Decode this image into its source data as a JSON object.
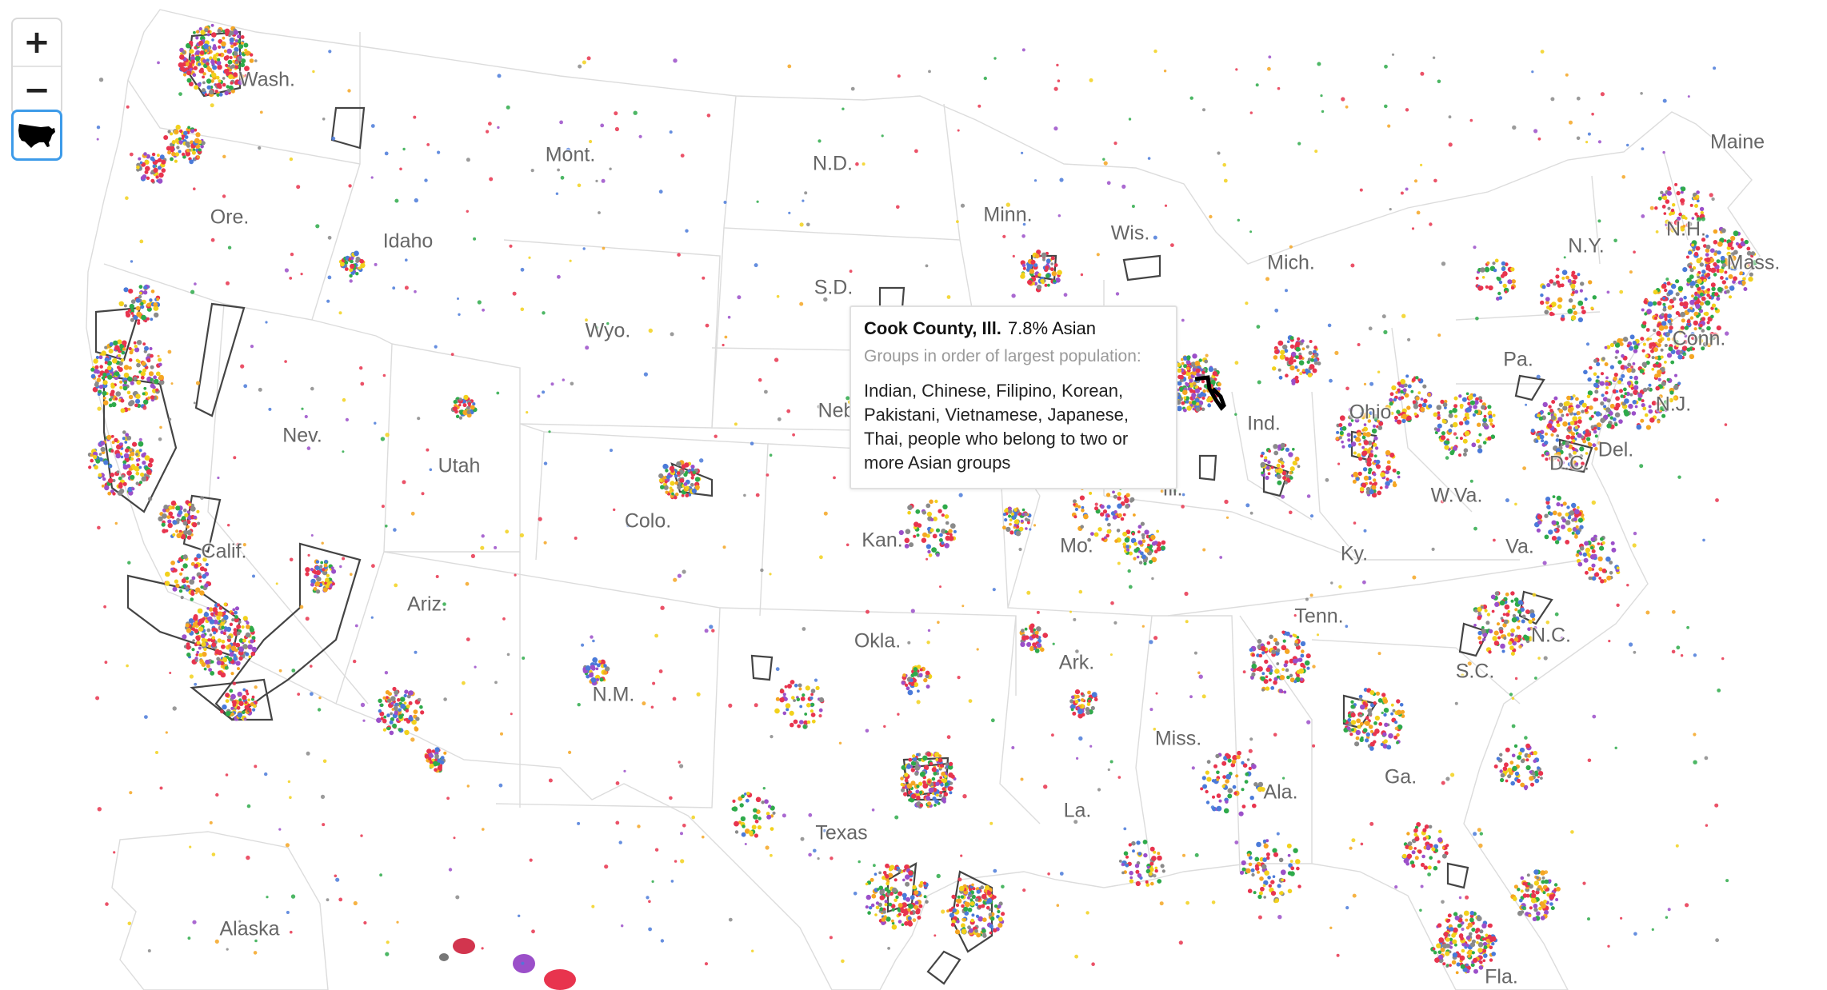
{
  "controls": {
    "zoom_in_label": "+",
    "zoom_out_label": "−",
    "reset_icon": "usa-map-icon"
  },
  "tooltip": {
    "county": "Cook County, Ill.",
    "stat": "7.8% Asian",
    "subtitle": "Groups in order of largest population:",
    "groups": "Indian, Chinese, Filipino, Korean, Pakistani, Vietnamese, Japanese, Thai, people who belong to two or more Asian groups"
  },
  "states": {
    "wash": "Wash.",
    "ore": "Ore.",
    "calif": "Calif.",
    "nev": "Nev.",
    "idaho": "Idaho",
    "mont": "Mont.",
    "wyo": "Wyo.",
    "utah": "Utah",
    "ariz": "Ariz.",
    "colo": "Colo.",
    "nm": "N.M.",
    "nd": "N.D.",
    "sd": "S.D.",
    "neb": "Neb.",
    "kan": "Kan.",
    "okla": "Okla.",
    "texas": "Texas",
    "minn": "Minn.",
    "wis": "Wis.",
    "mich": "Mich.",
    "ill": "Ill.",
    "ind": "Ind.",
    "ohio": "Ohio",
    "mo": "Mo.",
    "ark": "Ark.",
    "la": "La.",
    "miss": "Miss.",
    "ala": "Ala.",
    "ga": "Ga.",
    "fla": "Fla.",
    "tenn": "Tenn.",
    "ky": "Ky.",
    "wva": "W.Va.",
    "va": "Va.",
    "nc": "N.C.",
    "sc": "S.C.",
    "pa": "Pa.",
    "ny": "N.Y.",
    "nj": "N.J.",
    "del": "Del.",
    "dc": "D.C.",
    "conn": "Conn.",
    "mass": "Mass.",
    "nh": "N.H.",
    "maine": "Maine",
    "alaska": "Alaska"
  },
  "dot_colors": [
    "#e8344e",
    "#f5a623",
    "#f2d11c",
    "#4a7ad9",
    "#8a8a8a",
    "#2eaa4a",
    "#9b4fc9",
    "#e8344e"
  ],
  "highlight_color": "#000000"
}
